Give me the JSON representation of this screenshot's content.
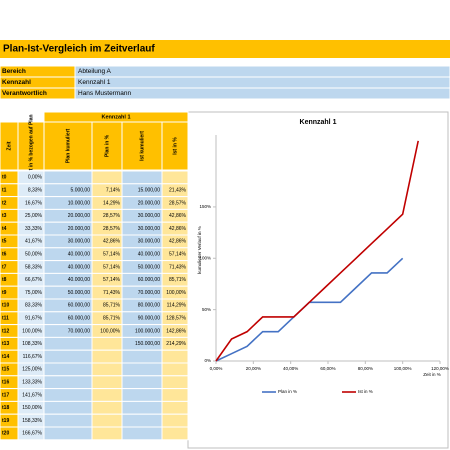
{
  "header": {
    "title": "Plan-Ist-Vergleich im Zeitverlauf"
  },
  "info": [
    {
      "label": "Bereich",
      "value": "Abteilung A"
    },
    {
      "label": "Kennzahl",
      "value": "Kennzahl 1"
    },
    {
      "label": "Verantwortlich",
      "value": "Hans Mustermann"
    }
  ],
  "table": {
    "group_header": "Kennzahl 1",
    "columns": [
      "Zeit",
      "Zeit in % bezogen auf Plan",
      "Plan kumuliert",
      "Plan in %",
      "Ist kumuliert",
      "Ist in %"
    ],
    "rows": [
      [
        "t0",
        "0,00%",
        null,
        null,
        null,
        null
      ],
      [
        "t1",
        "8,33%",
        "5.000,00",
        "7,14%",
        "15.000,00",
        "21,43%"
      ],
      [
        "t2",
        "16,67%",
        "10.000,00",
        "14,29%",
        "20.000,00",
        "28,57%"
      ],
      [
        "t3",
        "25,00%",
        "20.000,00",
        "28,57%",
        "30.000,00",
        "42,86%"
      ],
      [
        "t4",
        "33,33%",
        "20.000,00",
        "28,57%",
        "30.000,00",
        "42,86%"
      ],
      [
        "t5",
        "41,67%",
        "30.000,00",
        "42,86%",
        "30.000,00",
        "42,86%"
      ],
      [
        "t6",
        "50,00%",
        "40.000,00",
        "57,14%",
        "40.000,00",
        "57,14%"
      ],
      [
        "t7",
        "58,33%",
        "40.000,00",
        "57,14%",
        "50.000,00",
        "71,43%"
      ],
      [
        "t8",
        "66,67%",
        "40.000,00",
        "57,14%",
        "60.000,00",
        "85,71%"
      ],
      [
        "t9",
        "75,00%",
        "50.000,00",
        "71,43%",
        "70.000,00",
        "100,00%"
      ],
      [
        "t10",
        "83,33%",
        "60.000,00",
        "85,71%",
        "80.000,00",
        "114,29%"
      ],
      [
        "t11",
        "91,67%",
        "60.000,00",
        "85,71%",
        "90.000,00",
        "128,57%"
      ],
      [
        "t12",
        "100,00%",
        "70.000,00",
        "100,00%",
        "100.000,00",
        "142,86%"
      ],
      [
        "t13",
        "108,33%",
        null,
        null,
        "150.000,00",
        "214,29%"
      ],
      [
        "t14",
        "116,67%",
        null,
        null,
        null,
        null
      ],
      [
        "t15",
        "125,00%",
        null,
        null,
        null,
        null
      ],
      [
        "t16",
        "133,33%",
        null,
        null,
        null,
        null
      ],
      [
        "t17",
        "141,67%",
        null,
        null,
        null,
        null
      ],
      [
        "t18",
        "150,00%",
        null,
        null,
        null,
        null
      ],
      [
        "t19",
        "158,33%",
        null,
        null,
        null,
        null
      ],
      [
        "t20",
        "166,67%",
        null,
        null,
        null,
        null
      ]
    ]
  },
  "chart_data": {
    "type": "line",
    "title": "Kennzahl 1",
    "x_label": "Zeit in %",
    "y_label": "kumulierter Verlauf in %",
    "x": [
      0,
      8.33,
      16.67,
      25,
      33.33,
      41.67,
      50,
      58.33,
      66.67,
      75,
      83.33,
      91.67,
      100,
      108.33
    ],
    "xlim": [
      0,
      120
    ],
    "xticks": [
      {
        "value": 0,
        "label": "0,00%"
      },
      {
        "value": 20,
        "label": "20,00%"
      },
      {
        "value": 40,
        "label": "40,00%"
      },
      {
        "value": 60,
        "label": "60,00%"
      },
      {
        "value": 80,
        "label": "80,00%"
      },
      {
        "value": 100,
        "label": "100,00%"
      },
      {
        "value": 120,
        "label": "120,00%"
      }
    ],
    "ylim": [
      0,
      220
    ],
    "yticks": [
      {
        "value": 0,
        "label": "0%"
      },
      {
        "value": 50,
        "label": "50%"
      },
      {
        "value": 100,
        "label": "100%"
      },
      {
        "value": 150,
        "label": "150%"
      }
    ],
    "grid": false,
    "series": [
      {
        "name": "Plan in %",
        "color": "#4472c4",
        "values": [
          0,
          7.14,
          14.29,
          28.57,
          28.57,
          42.86,
          57.14,
          57.14,
          57.14,
          71.43,
          85.71,
          85.71,
          100,
          null
        ]
      },
      {
        "name": "Ist in %",
        "color": "#c00000",
        "values": [
          0,
          21.43,
          28.57,
          42.86,
          42.86,
          42.86,
          57.14,
          71.43,
          85.71,
          100,
          114.29,
          128.57,
          142.86,
          214.29
        ]
      }
    ]
  }
}
